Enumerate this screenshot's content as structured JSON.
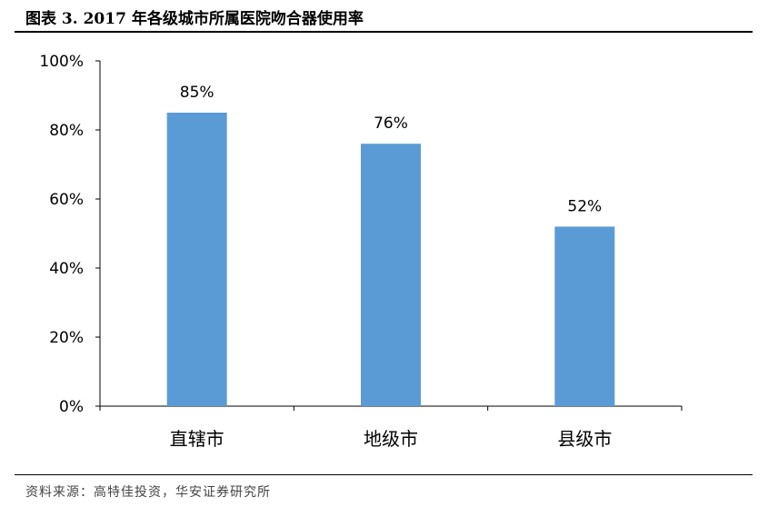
{
  "figure": {
    "title": "图表 3. 2017 年各级城市所属医院吻合器使用率",
    "source": "资料来源：高特佳投资，华安证券研究所"
  },
  "chart_data": {
    "type": "bar",
    "categories": [
      "直辖市",
      "地级市",
      "县级市"
    ],
    "values": [
      85,
      76,
      52
    ],
    "value_labels": [
      "85%",
      "76%",
      "52%"
    ],
    "yticks": [
      0,
      20,
      40,
      60,
      80,
      100
    ],
    "ytick_labels": [
      "0%",
      "20%",
      "40%",
      "60%",
      "80%",
      "100%"
    ],
    "ylim": [
      0,
      100
    ],
    "title": "",
    "xlabel": "",
    "ylabel": "",
    "grid": false,
    "legend": "none",
    "bar_color": "#5B9BD5"
  }
}
